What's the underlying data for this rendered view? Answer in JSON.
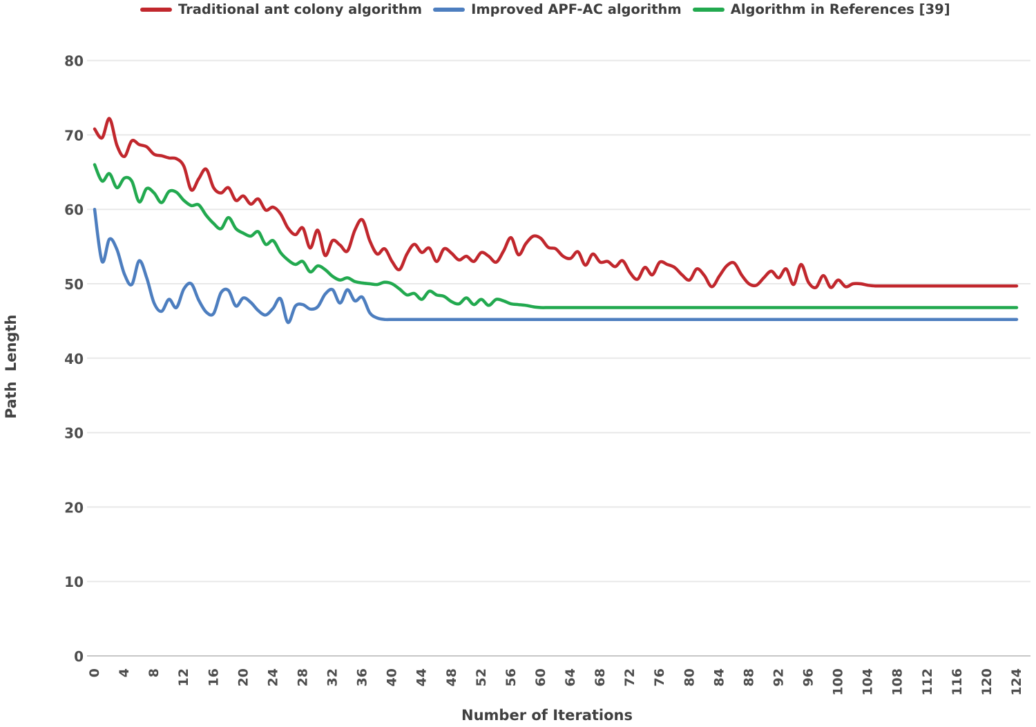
{
  "chart_data": {
    "type": "line",
    "title": "",
    "xlabel": "Number of Iterations",
    "ylabel": "Path Length",
    "xlim": [
      0,
      124
    ],
    "ylim": [
      0,
      80
    ],
    "grid": "horizontal",
    "legend_position": "top",
    "x_ticks": [
      0,
      4,
      8,
      12,
      16,
      20,
      24,
      28,
      32,
      36,
      40,
      44,
      48,
      52,
      56,
      60,
      64,
      68,
      72,
      76,
      80,
      84,
      88,
      92,
      96,
      100,
      104,
      108,
      112,
      116,
      120,
      124
    ],
    "y_ticks": [
      0,
      10,
      20,
      30,
      40,
      50,
      60,
      70,
      80
    ],
    "x": [
      0,
      1,
      2,
      3,
      4,
      5,
      6,
      7,
      8,
      9,
      10,
      11,
      12,
      13,
      14,
      15,
      16,
      17,
      18,
      19,
      20,
      21,
      22,
      23,
      24,
      25,
      26,
      27,
      28,
      29,
      30,
      31,
      32,
      33,
      34,
      35,
      36,
      37,
      38,
      39,
      40,
      41,
      42,
      43,
      44,
      45,
      46,
      47,
      48,
      49,
      50,
      51,
      52,
      53,
      54,
      55,
      56,
      57,
      58,
      59,
      60,
      61,
      62,
      63,
      64,
      65,
      66,
      67,
      68,
      69,
      70,
      71,
      72,
      73,
      74,
      75,
      76,
      77,
      78,
      79,
      80,
      81,
      82,
      83,
      84,
      85,
      86,
      87,
      88,
      89,
      90,
      91,
      92,
      93,
      94,
      95,
      96,
      97,
      98,
      99,
      100,
      101,
      102,
      103,
      104,
      105,
      106,
      107,
      108,
      109,
      110,
      111,
      112,
      113,
      114,
      115,
      116,
      117,
      118,
      119,
      120,
      121,
      122,
      123,
      124
    ],
    "series": [
      {
        "id": "traditional-ant-colony",
        "name": "Traditional ant colony algorithm",
        "color": "#c1272d",
        "final_value": 49.7,
        "values": [
          70.8,
          69.6,
          72.2,
          68.6,
          67.1,
          69.2,
          68.7,
          68.4,
          67.4,
          67.2,
          66.9,
          66.8,
          65.8,
          62.6,
          64.1,
          65.4,
          62.9,
          62.2,
          62.9,
          61.2,
          61.8,
          60.7,
          61.4,
          59.9,
          60.3,
          59.4,
          57.5,
          56.6,
          57.5,
          54.8,
          57.2,
          53.8,
          55.8,
          55.2,
          54.4,
          57.2,
          58.6,
          55.8,
          54.0,
          54.7,
          53.0,
          51.9,
          54.0,
          55.3,
          54.2,
          54.8,
          53.0,
          54.7,
          54.1,
          53.2,
          53.7,
          53.0,
          54.2,
          53.7,
          52.9,
          54.4,
          56.2,
          53.9,
          55.4,
          56.4,
          56.1,
          54.9,
          54.7,
          53.7,
          53.4,
          54.3,
          52.5,
          54.0,
          52.9,
          53.0,
          52.3,
          53.1,
          51.5,
          50.6,
          52.2,
          51.2,
          52.9,
          52.6,
          52.2,
          51.2,
          50.5,
          52.0,
          51.1,
          49.6,
          51.0,
          52.4,
          52.8,
          51.2,
          50.0,
          49.8,
          50.8,
          51.7,
          50.8,
          52.0,
          49.9,
          52.6,
          50.2,
          49.5,
          51.1,
          49.5,
          50.5,
          49.6,
          50.0,
          50.0,
          49.8,
          49.7,
          49.7,
          49.7,
          49.7,
          49.7,
          49.7,
          49.7,
          49.7,
          49.7,
          49.7,
          49.7,
          49.7,
          49.7,
          49.7,
          49.7,
          49.7,
          49.7,
          49.7,
          49.7,
          49.7
        ]
      },
      {
        "id": "improved-apf-ac",
        "name": "Improved APF-AC algorithm",
        "color": "#4d7ebf",
        "final_value": 45.2,
        "values": [
          60.0,
          53.0,
          56.0,
          54.6,
          51.3,
          49.9,
          53.1,
          50.8,
          47.4,
          46.3,
          47.9,
          46.8,
          49.3,
          50.0,
          47.8,
          46.2,
          46.0,
          48.8,
          49.1,
          47.0,
          48.1,
          47.5,
          46.4,
          45.8,
          46.7,
          48.0,
          44.8,
          47.0,
          47.2,
          46.6,
          46.9,
          48.6,
          49.2,
          47.4,
          49.2,
          47.7,
          48.2,
          46.1,
          45.4,
          45.2,
          45.2,
          45.2,
          45.2,
          45.2,
          45.2,
          45.2,
          45.2,
          45.2,
          45.2,
          45.2,
          45.2,
          45.2,
          45.2,
          45.2,
          45.2,
          45.2,
          45.2,
          45.2,
          45.2,
          45.2,
          45.2,
          45.2,
          45.2,
          45.2,
          45.2,
          45.2,
          45.2,
          45.2,
          45.2,
          45.2,
          45.2,
          45.2,
          45.2,
          45.2,
          45.2,
          45.2,
          45.2,
          45.2,
          45.2,
          45.2,
          45.2,
          45.2,
          45.2,
          45.2,
          45.2,
          45.2,
          45.2,
          45.2,
          45.2,
          45.2,
          45.2,
          45.2,
          45.2,
          45.2,
          45.2,
          45.2,
          45.2,
          45.2,
          45.2,
          45.2,
          45.2,
          45.2,
          45.2,
          45.2,
          45.2,
          45.2,
          45.2,
          45.2,
          45.2,
          45.2,
          45.2,
          45.2,
          45.2,
          45.2,
          45.2,
          45.2,
          45.2,
          45.2,
          45.2,
          45.2,
          45.2,
          45.2,
          45.2,
          45.2,
          45.2
        ]
      },
      {
        "id": "references-39",
        "name": "Algorithm in References [39]",
        "color": "#22a94f",
        "final_value": 46.8,
        "values": [
          66.0,
          63.8,
          64.8,
          62.9,
          64.2,
          63.8,
          61.0,
          62.8,
          62.2,
          60.9,
          62.4,
          62.3,
          61.2,
          60.5,
          60.6,
          59.2,
          58.1,
          57.4,
          58.9,
          57.4,
          56.8,
          56.4,
          57.0,
          55.3,
          55.8,
          54.2,
          53.2,
          52.6,
          53.0,
          51.6,
          52.4,
          51.9,
          51.0,
          50.5,
          50.8,
          50.3,
          50.1,
          50.0,
          49.9,
          50.2,
          50.0,
          49.3,
          48.5,
          48.7,
          47.9,
          49.0,
          48.5,
          48.3,
          47.6,
          47.3,
          48.1,
          47.2,
          47.9,
          47.1,
          47.9,
          47.7,
          47.3,
          47.2,
          47.1,
          46.9,
          46.8,
          46.8,
          46.8,
          46.8,
          46.8,
          46.8,
          46.8,
          46.8,
          46.8,
          46.8,
          46.8,
          46.8,
          46.8,
          46.8,
          46.8,
          46.8,
          46.8,
          46.8,
          46.8,
          46.8,
          46.8,
          46.8,
          46.8,
          46.8,
          46.8,
          46.8,
          46.8,
          46.8,
          46.8,
          46.8,
          46.8,
          46.8,
          46.8,
          46.8,
          46.8,
          46.8,
          46.8,
          46.8,
          46.8,
          46.8,
          46.8,
          46.8,
          46.8,
          46.8,
          46.8,
          46.8,
          46.8,
          46.8,
          46.8,
          46.8,
          46.8,
          46.8,
          46.8,
          46.8,
          46.8,
          46.8,
          46.8,
          46.8,
          46.8,
          46.8,
          46.8,
          46.8,
          46.8,
          46.8,
          46.8
        ]
      }
    ]
  }
}
